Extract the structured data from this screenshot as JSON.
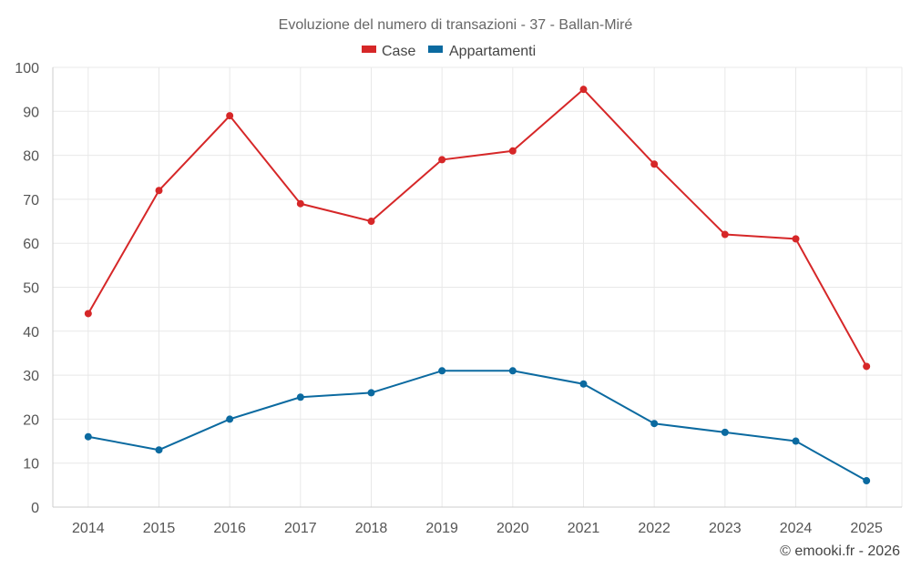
{
  "chart_data": {
    "type": "line",
    "title": "Evoluzione del numero di transazioni - 37 - Ballan-Miré",
    "categories": [
      "2014",
      "2015",
      "2016",
      "2017",
      "2018",
      "2019",
      "2020",
      "2021",
      "2022",
      "2023",
      "2024",
      "2025"
    ],
    "series": [
      {
        "name": "Case",
        "color": "#d62728",
        "values": [
          44,
          72,
          89,
          69,
          65,
          79,
          81,
          95,
          78,
          62,
          61,
          32
        ]
      },
      {
        "name": "Appartamenti",
        "color": "#0b6aa0",
        "values": [
          16,
          13,
          20,
          25,
          26,
          31,
          31,
          28,
          19,
          17,
          15,
          6
        ]
      }
    ],
    "ylim": [
      0,
      100
    ],
    "yticks": [
      "0",
      "10",
      "20",
      "30",
      "40",
      "50",
      "60",
      "70",
      "80",
      "90",
      "100"
    ],
    "xlabel": "",
    "ylabel": "",
    "grid": true,
    "legend": "top-center"
  },
  "credit": "© emooki.fr - 2026"
}
